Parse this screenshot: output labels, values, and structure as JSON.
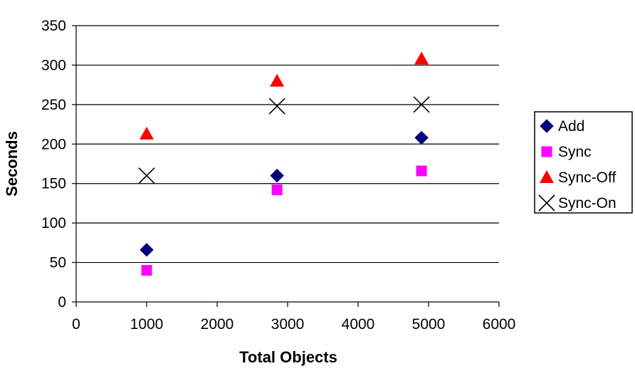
{
  "chart_data": {
    "type": "scatter",
    "xlabel": "Total Objects",
    "ylabel": "Seconds",
    "xlim": [
      0,
      6000
    ],
    "ylim": [
      0,
      350
    ],
    "x_ticks": [
      0,
      1000,
      2000,
      3000,
      4000,
      5000,
      6000
    ],
    "y_ticks": [
      0,
      50,
      100,
      150,
      200,
      250,
      300,
      350
    ],
    "grid": "horizontal",
    "legend_position": "right",
    "series": [
      {
        "name": "Add",
        "marker": "diamond",
        "color": "#000080",
        "points": [
          {
            "x": 1000,
            "y": 66
          },
          {
            "x": 2850,
            "y": 160
          },
          {
            "x": 4900,
            "y": 208
          }
        ]
      },
      {
        "name": "Sync",
        "marker": "square",
        "color": "#FF00FF",
        "points": [
          {
            "x": 1000,
            "y": 40
          },
          {
            "x": 2850,
            "y": 142
          },
          {
            "x": 4900,
            "y": 166
          }
        ]
      },
      {
        "name": "Sync-Off",
        "marker": "triangle",
        "color": "#FF0000",
        "points": [
          {
            "x": 1000,
            "y": 213
          },
          {
            "x": 2850,
            "y": 280
          },
          {
            "x": 4900,
            "y": 308
          }
        ]
      },
      {
        "name": "Sync-On",
        "marker": "x",
        "color": "#000000",
        "points": [
          {
            "x": 1000,
            "y": 160
          },
          {
            "x": 2850,
            "y": 248
          },
          {
            "x": 4900,
            "y": 250
          }
        ]
      }
    ]
  }
}
